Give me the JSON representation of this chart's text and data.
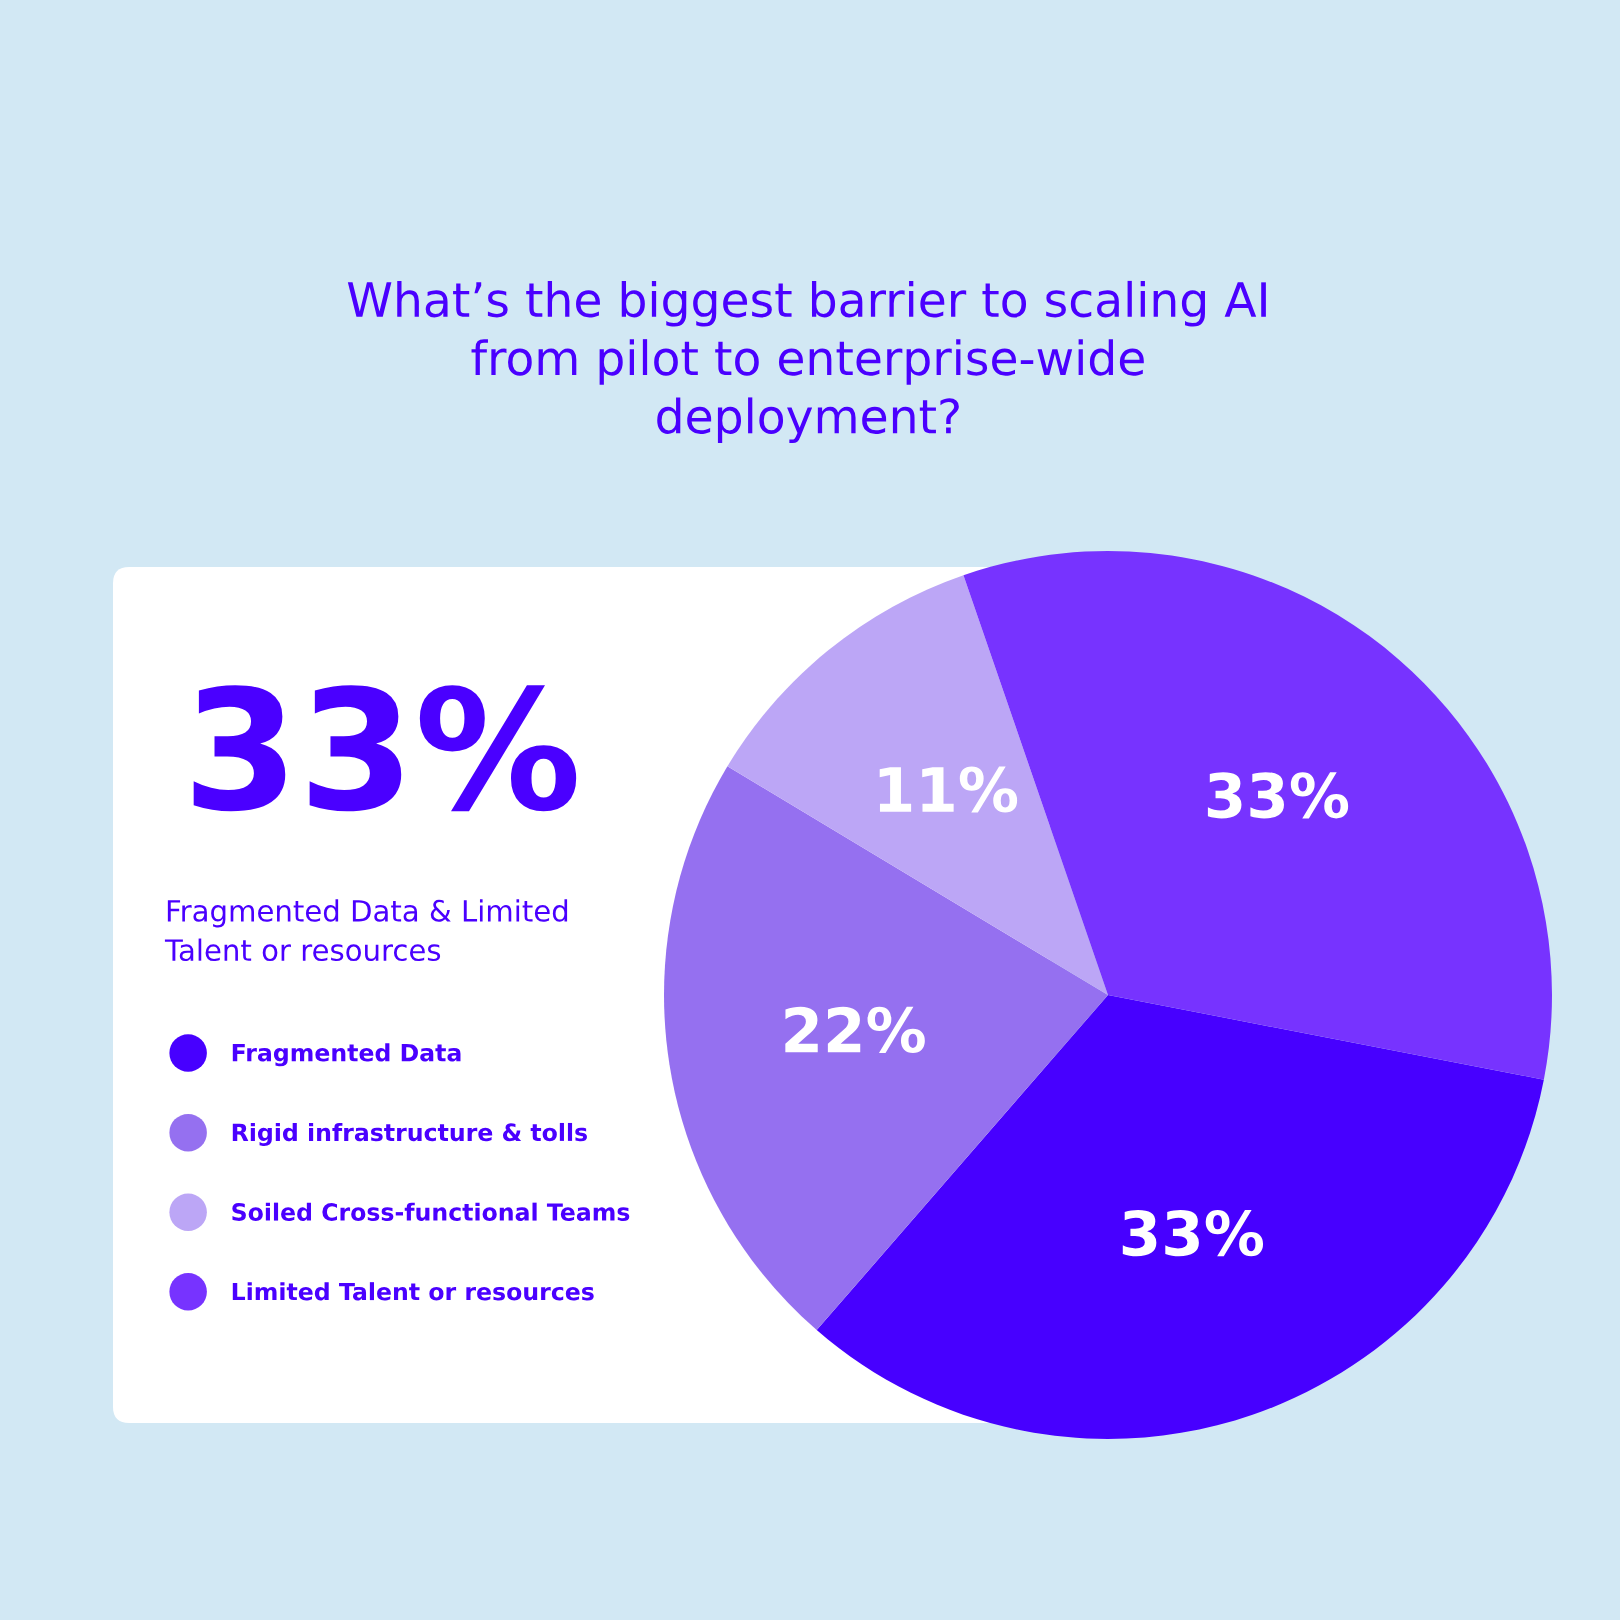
{
  "chart_data": {
    "type": "pie",
    "title": "What’s the biggest barrier to scaling AI\nfrom pilot to enterprise-wide\ndeployment?",
    "categories": [
      "Fragmented Data",
      "Rigid infrastructure & tolls",
      "Soiled Cross-functional Teams",
      "Limited Talent or resources"
    ],
    "values": [
      33,
      22,
      11,
      33
    ],
    "colors": [
      "#4700ff",
      "#9570f0",
      "#bca6f6",
      "#7733ff"
    ],
    "value_labels": [
      "33%",
      "22%",
      "11%",
      "33%"
    ],
    "legend": "left",
    "annotations": [
      "33%",
      "Fragmented Data & Limited\nTalent or resources"
    ]
  }
}
